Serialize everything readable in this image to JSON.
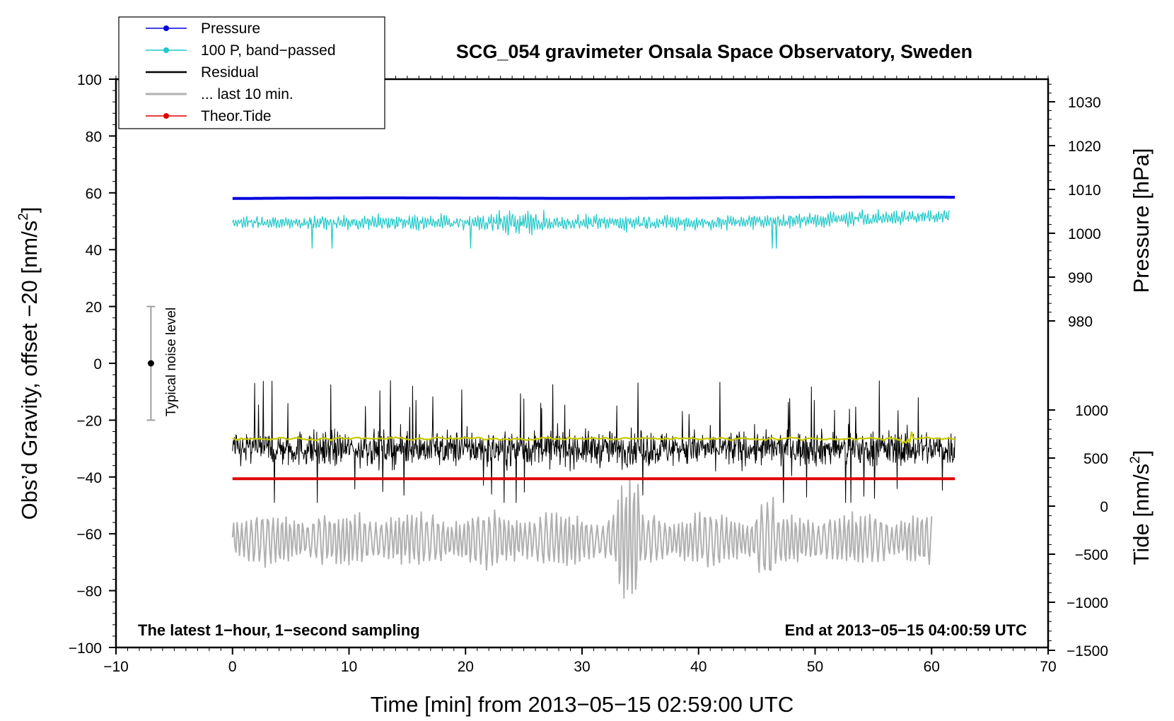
{
  "chart_data": {
    "type": "line",
    "title": "SCG_054 gravimeter Onsala Space Observatory, Sweden",
    "xlabel": "Time [min] from 2013−05−15 02:59:00 UTC",
    "ylabel_left_prefix": "Obs’d Gravity, offset −20 [nm/s",
    "ylabel_left_sup": "2",
    "ylabel_left_suffix": "]",
    "ylabel_pressure": "Pressure [hPa]",
    "ylabel_tide_prefix": "Tide [nm/s",
    "ylabel_tide_sup": "2",
    "ylabel_tide_suffix": "]",
    "xlim": [
      -10,
      70
    ],
    "ylim": [
      -100,
      100
    ],
    "x_ticks": [
      "−10",
      "0",
      "10",
      "20",
      "30",
      "40",
      "50",
      "60",
      "70"
    ],
    "y_ticks": [
      "100",
      "80",
      "60",
      "40",
      "20",
      "0",
      "−20",
      "−40",
      "−60",
      "−80",
      "−100"
    ],
    "pressure_ticks": [
      "1030",
      "1020",
      "1010",
      "1000",
      "990",
      "980"
    ],
    "tide_ticks": [
      "1000",
      "500",
      "0",
      "−500",
      "−1000",
      "−1500"
    ],
    "note_left": "The latest 1−hour, 1−second sampling",
    "note_right": "End at 2013−05−15 04:00:59 UTC",
    "noise_bar": {
      "label": "Typical noise level",
      "x": -7,
      "center": 0,
      "low": -20,
      "high": 20
    },
    "legend": [
      {
        "name": "Pressure",
        "color": "#0000e0",
        "marker": true
      },
      {
        "name": "100 P, band−passed",
        "color": "#20c8c8",
        "marker": true
      },
      {
        "name": "Residual",
        "color": "#000000",
        "marker": false
      },
      {
        "name": "... last 10 min.",
        "color": "#b0b0b0",
        "marker": false
      },
      {
        "name": "Theor.Tide",
        "color": "#e00000",
        "marker": true
      }
    ],
    "series": [
      {
        "name": "Pressure",
        "color": "#0000e0",
        "x_range": [
          0,
          62
        ],
        "level_start": 58.0,
        "level_end": 58.4,
        "noise_amplitude": 0.3
      },
      {
        "name": "100 P, band−passed",
        "color": "#20c8c8",
        "x_range": [
          0,
          61.5
        ],
        "mean": 49.5,
        "noise_amplitude": 2.5,
        "extremes": [
          40,
          58
        ]
      },
      {
        "name": "Residual",
        "color": "#000000",
        "x_range": [
          0,
          62
        ],
        "mean": -30,
        "noise_amplitude": 6,
        "extremes": [
          -50,
          -4
        ]
      },
      {
        "name": "Residual smoothed",
        "color": "#c8c800",
        "x_range": [
          0,
          62
        ],
        "mean": -26.5,
        "noise_amplitude": 0.6
      },
      {
        "name": "... last 10 min.",
        "color": "#b0b0b0",
        "x_range": [
          0,
          60
        ],
        "mean": -62,
        "noise_amplitude": 7,
        "extremes": [
          -83,
          -40
        ]
      },
      {
        "name": "Theor.Tide",
        "color": "#e00000",
        "x_range": [
          0,
          62
        ],
        "level_start": -40.6,
        "level_end": -40.6
      }
    ]
  }
}
